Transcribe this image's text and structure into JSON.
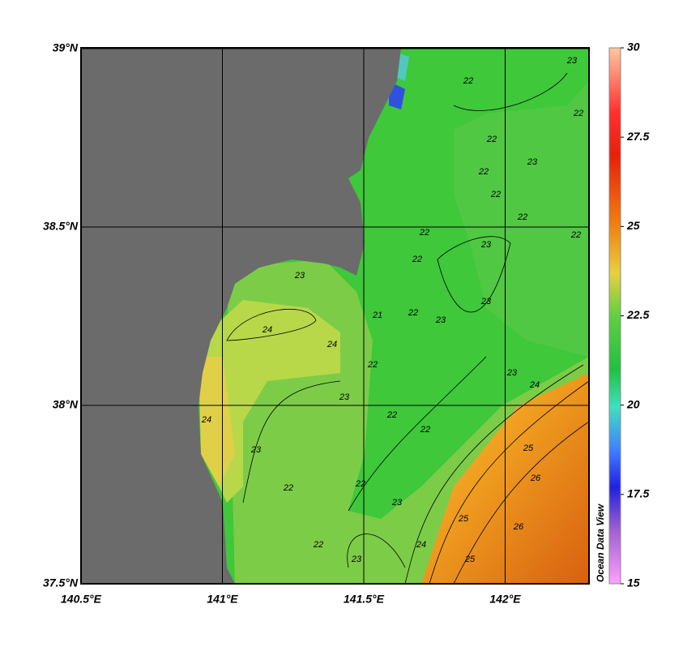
{
  "map": {
    "lon_range": [
      140.5,
      142.3
    ],
    "lat_range": [
      37.5,
      39
    ],
    "lon_ticks": [
      {
        "value": 140.5,
        "label": "140.5°E"
      },
      {
        "value": 141,
        "label": "141°E"
      },
      {
        "value": 141.5,
        "label": "141.5°E"
      },
      {
        "value": 142,
        "label": "142°E"
      }
    ],
    "lat_ticks": [
      {
        "value": 39,
        "label": "39°N"
      },
      {
        "value": 38.5,
        "label": "38.5°N"
      },
      {
        "value": 38,
        "label": "38°N"
      },
      {
        "value": 37.5,
        "label": "37.5°N"
      }
    ],
    "colorbar": {
      "range": [
        15,
        30
      ],
      "ticks": [
        30,
        27.5,
        25,
        22.5,
        20,
        17.5,
        15
      ]
    },
    "contour_labels": [
      "22",
      "23",
      "22",
      "22",
      "22",
      "23",
      "22",
      "22",
      "22",
      "22",
      "23",
      "22",
      "23",
      "21",
      "22",
      "23",
      "24",
      "24",
      "22",
      "23",
      "22",
      "22",
      "24",
      "23",
      "25",
      "26",
      "23",
      "22",
      "22",
      "23",
      "24",
      "25",
      "25",
      "26",
      "23",
      "24",
      "22",
      "23"
    ],
    "watermark": "Ocean Data View"
  }
}
